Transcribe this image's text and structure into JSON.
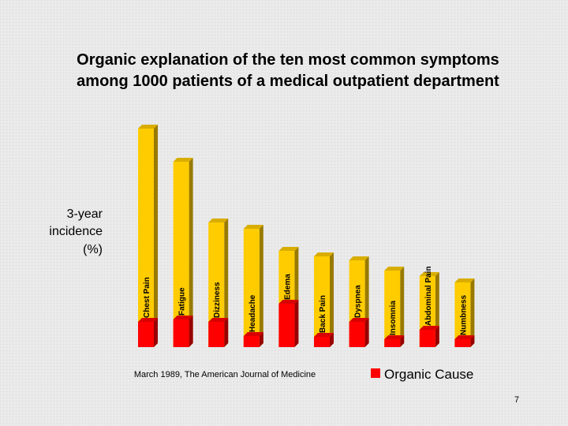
{
  "chart_data": {
    "type": "bar",
    "title": [
      "Organic explanation of the ten most common symptoms",
      "among 1000 patients of a medical outpatient department"
    ],
    "ylabel": [
      "3-year",
      "incidence",
      "(%)"
    ],
    "categories": [
      "Chest Pain",
      "Fatigue",
      "Dizziness",
      "Headache",
      "Edema",
      "Back Pain",
      "Dyspnea",
      "Insomnia",
      "Abdominal Pain",
      "Numbness"
    ],
    "values": [
      27.7,
      23.5,
      15.8,
      15.0,
      12.2,
      11.5,
      11.0,
      9.7,
      9.0,
      8.2
    ],
    "color": "#ffcc00",
    "series": [
      {
        "name": "Organic Cause",
        "color": "#ff0000",
        "values": [
          3.2,
          3.5,
          3.2,
          1.4,
          5.5,
          1.3,
          3.2,
          1.0,
          2.2,
          1.0
        ]
      }
    ],
    "ylim": [
      0,
      30
    ],
    "annotation": "March 1989, The American Journal of Medicine",
    "page_number": 7
  }
}
